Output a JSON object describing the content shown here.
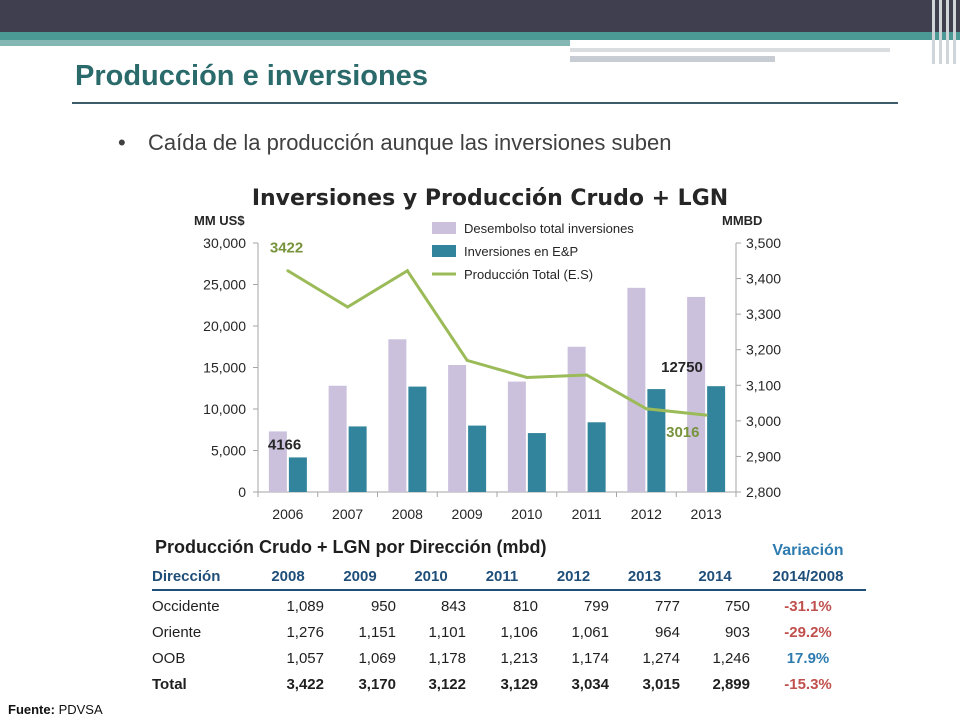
{
  "slide": {
    "title": "Producción e inversiones",
    "bullet": "Caída de la producción aunque las inversiones suben",
    "source_label": "Fuente:",
    "source_value": "PDVSA"
  },
  "chart_data": {
    "type": "bar",
    "title": "Inversiones y Producción Crudo + LGN",
    "ylabel_left": "MM US$",
    "ylabel_right": "MMBD",
    "categories": [
      "2006",
      "2007",
      "2008",
      "2009",
      "2010",
      "2011",
      "2012",
      "2013"
    ],
    "ylim_left": [
      0,
      30000
    ],
    "yticks_left": [
      "0",
      "5,000",
      "10,000",
      "15,000",
      "20,000",
      "25,000",
      "30,000"
    ],
    "ylim_right": [
      2800,
      3500
    ],
    "yticks_right": [
      "2,800",
      "2,900",
      "3,000",
      "3,100",
      "3,200",
      "3,300",
      "3,400",
      "3,500"
    ],
    "legend_position": "top-right",
    "series": [
      {
        "name": "Desembolso total inversiones",
        "kind": "bar",
        "axis": "left",
        "color": "#ccc1dd",
        "values": [
          7300,
          12800,
          18400,
          15300,
          13300,
          17500,
          24600,
          23500
        ]
      },
      {
        "name": "Inversiones en E&P",
        "kind": "bar",
        "axis": "left",
        "color": "#31849b",
        "values": [
          4166,
          7900,
          12700,
          8000,
          7100,
          8400,
          12400,
          12750
        ]
      },
      {
        "name": "Producción Total (E.S)",
        "kind": "line",
        "axis": "right",
        "color": "#9bbb59",
        "values": [
          3422,
          3320,
          3422,
          3170,
          3122,
          3129,
          3034,
          3016
        ]
      }
    ],
    "annotations": [
      {
        "text": "3422",
        "color": "#77933c"
      },
      {
        "text": "4166",
        "color": "#262626"
      },
      {
        "text": "12750",
        "color": "#262626"
      },
      {
        "text": "3016",
        "color": "#77933c"
      }
    ]
  },
  "table": {
    "title": "Producción Crudo + LGN por Dirección (mbd)",
    "variation_header_line1": "Variación",
    "columns": [
      "Dirección",
      "2008",
      "2009",
      "2010",
      "2011",
      "2012",
      "2013",
      "2014",
      "2014/2008"
    ],
    "rows": [
      {
        "name": "Occidente",
        "values": [
          "1,089",
          "950",
          "843",
          "810",
          "799",
          "777",
          "750"
        ],
        "variation": "-31.1%",
        "variation_color": "#c0504d"
      },
      {
        "name": "Oriente",
        "values": [
          "1,276",
          "1,151",
          "1,101",
          "1,106",
          "1,061",
          "964",
          "903"
        ],
        "variation": "-29.2%",
        "variation_color": "#c0504d"
      },
      {
        "name": "OOB",
        "values": [
          "1,057",
          "1,069",
          "1,178",
          "1,213",
          "1,174",
          "1,274",
          "1,246"
        ],
        "variation": "17.9%",
        "variation_color": "#2e7bb0"
      },
      {
        "name": "Total",
        "values": [
          "3,422",
          "3,170",
          "3,122",
          "3,129",
          "3,034",
          "3,015",
          "2,899"
        ],
        "variation": "-15.3%",
        "variation_color": "#c0504d"
      }
    ]
  }
}
